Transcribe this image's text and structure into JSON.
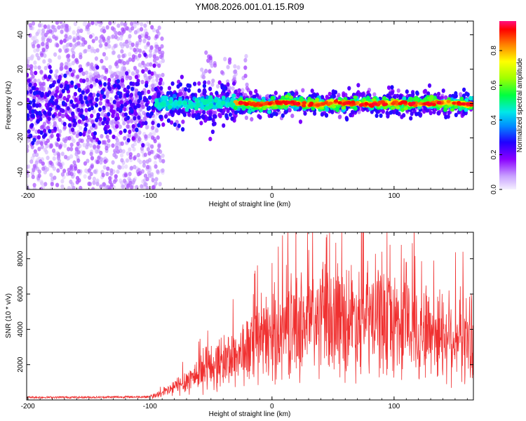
{
  "title": "YM08.2026.001.01.15.R09",
  "chart_data": [
    {
      "type": "heatmap",
      "xlabel": "Height of straight line (km)",
      "ylabel": "Frequency (Hz)",
      "xlim": [
        -201,
        165
      ],
      "ylim": [
        -50,
        48
      ],
      "xticks": [
        -200,
        -100,
        0,
        100
      ],
      "yticks": [
        -40,
        -20,
        0,
        20,
        40
      ],
      "colorbar": {
        "label": "Normalized spectral amplitude",
        "range": [
          0,
          0.97
        ],
        "ticks": [
          0.0,
          0.2,
          0.4,
          0.6,
          0.8
        ]
      },
      "description_values": {
        "signal_center_hz": 0,
        "noise_spread_hz_below_minus90km": [
          -50,
          48
        ],
        "strong_band_start_km": -30
      }
    },
    {
      "type": "line",
      "xlabel": "Height of straight line (km)",
      "ylabel": "SNR (10 * v/v)",
      "xlim": [
        -201,
        165
      ],
      "ylim": [
        0,
        9500
      ],
      "xticks": [
        -200,
        -100,
        0,
        100
      ],
      "yticks": [
        2000,
        4000,
        6000,
        8000
      ],
      "series": [
        {
          "name": "SNR",
          "color": "#f03030",
          "x": [
            -200,
            -150,
            -100,
            -90,
            -80,
            -70,
            -60,
            -50,
            -40,
            -30,
            -20,
            -10,
            0,
            10,
            20,
            30,
            40,
            50,
            60,
            70,
            80,
            90,
            100,
            110,
            120,
            130,
            140,
            150,
            160,
            165
          ],
          "y": [
            150,
            150,
            180,
            350,
            700,
            1100,
            1500,
            1900,
            2200,
            2500,
            2800,
            3200,
            3700,
            4000,
            4200,
            4400,
            4500,
            4500,
            4600,
            4700,
            4600,
            4500,
            4400,
            4200,
            4000,
            3900,
            3800,
            3600,
            3500,
            3500
          ],
          "peaks": [
            [
              30,
              8500
            ],
            [
              75,
              9500
            ],
            [
              90,
              8400
            ],
            [
              110,
              7800
            ],
            [
              145,
              6200
            ]
          ]
        }
      ]
    }
  ]
}
